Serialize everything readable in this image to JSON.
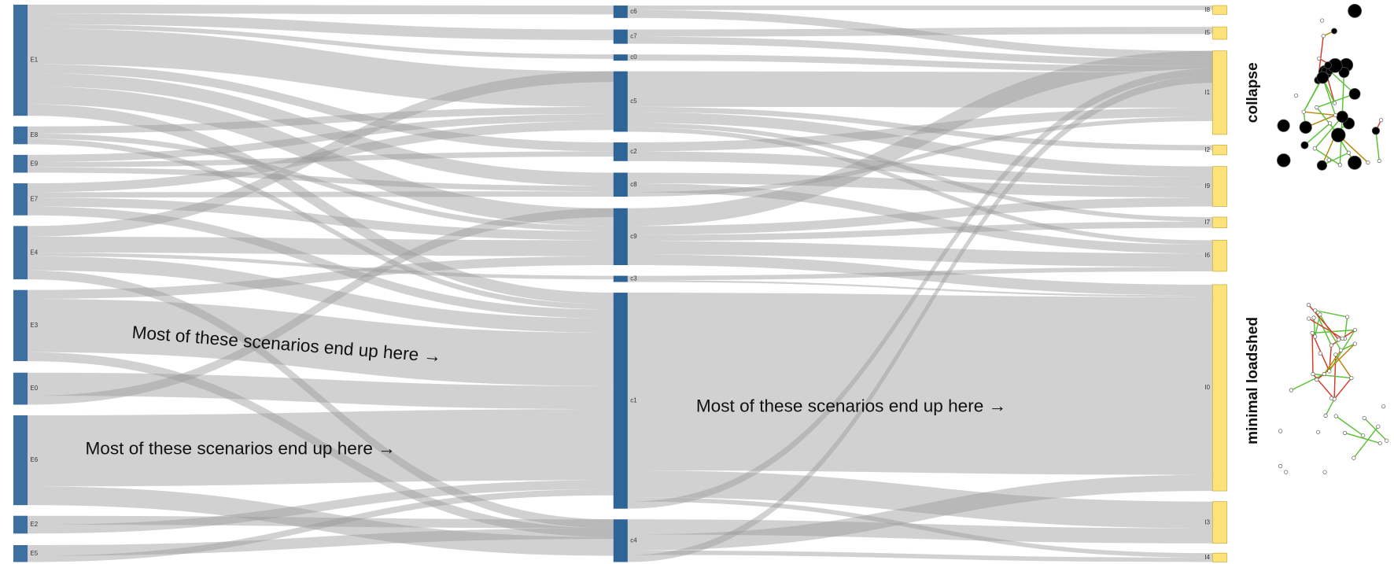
{
  "left_nodes": [
    "E1",
    "E8",
    "E9",
    "E7",
    "E4",
    "E3",
    "E0",
    "E6",
    "E2",
    "E5"
  ],
  "middle_nodes": [
    "c6",
    "c7",
    "c0",
    "c5",
    "c2",
    "c8",
    "c9",
    "c3",
    "c1",
    "c4"
  ],
  "right_nodes": [
    "I8",
    "I5",
    "I1",
    "I2",
    "I9",
    "I7",
    "I6",
    "I0",
    "I3",
    "I4"
  ],
  "annotations": [
    "Most of these scenarios end up here →",
    "Most of these scenarios end up here →",
    "Most of these scenarios end up here →"
  ],
  "outcome_labels": [
    "collapse",
    "minimal loadshed"
  ]
}
